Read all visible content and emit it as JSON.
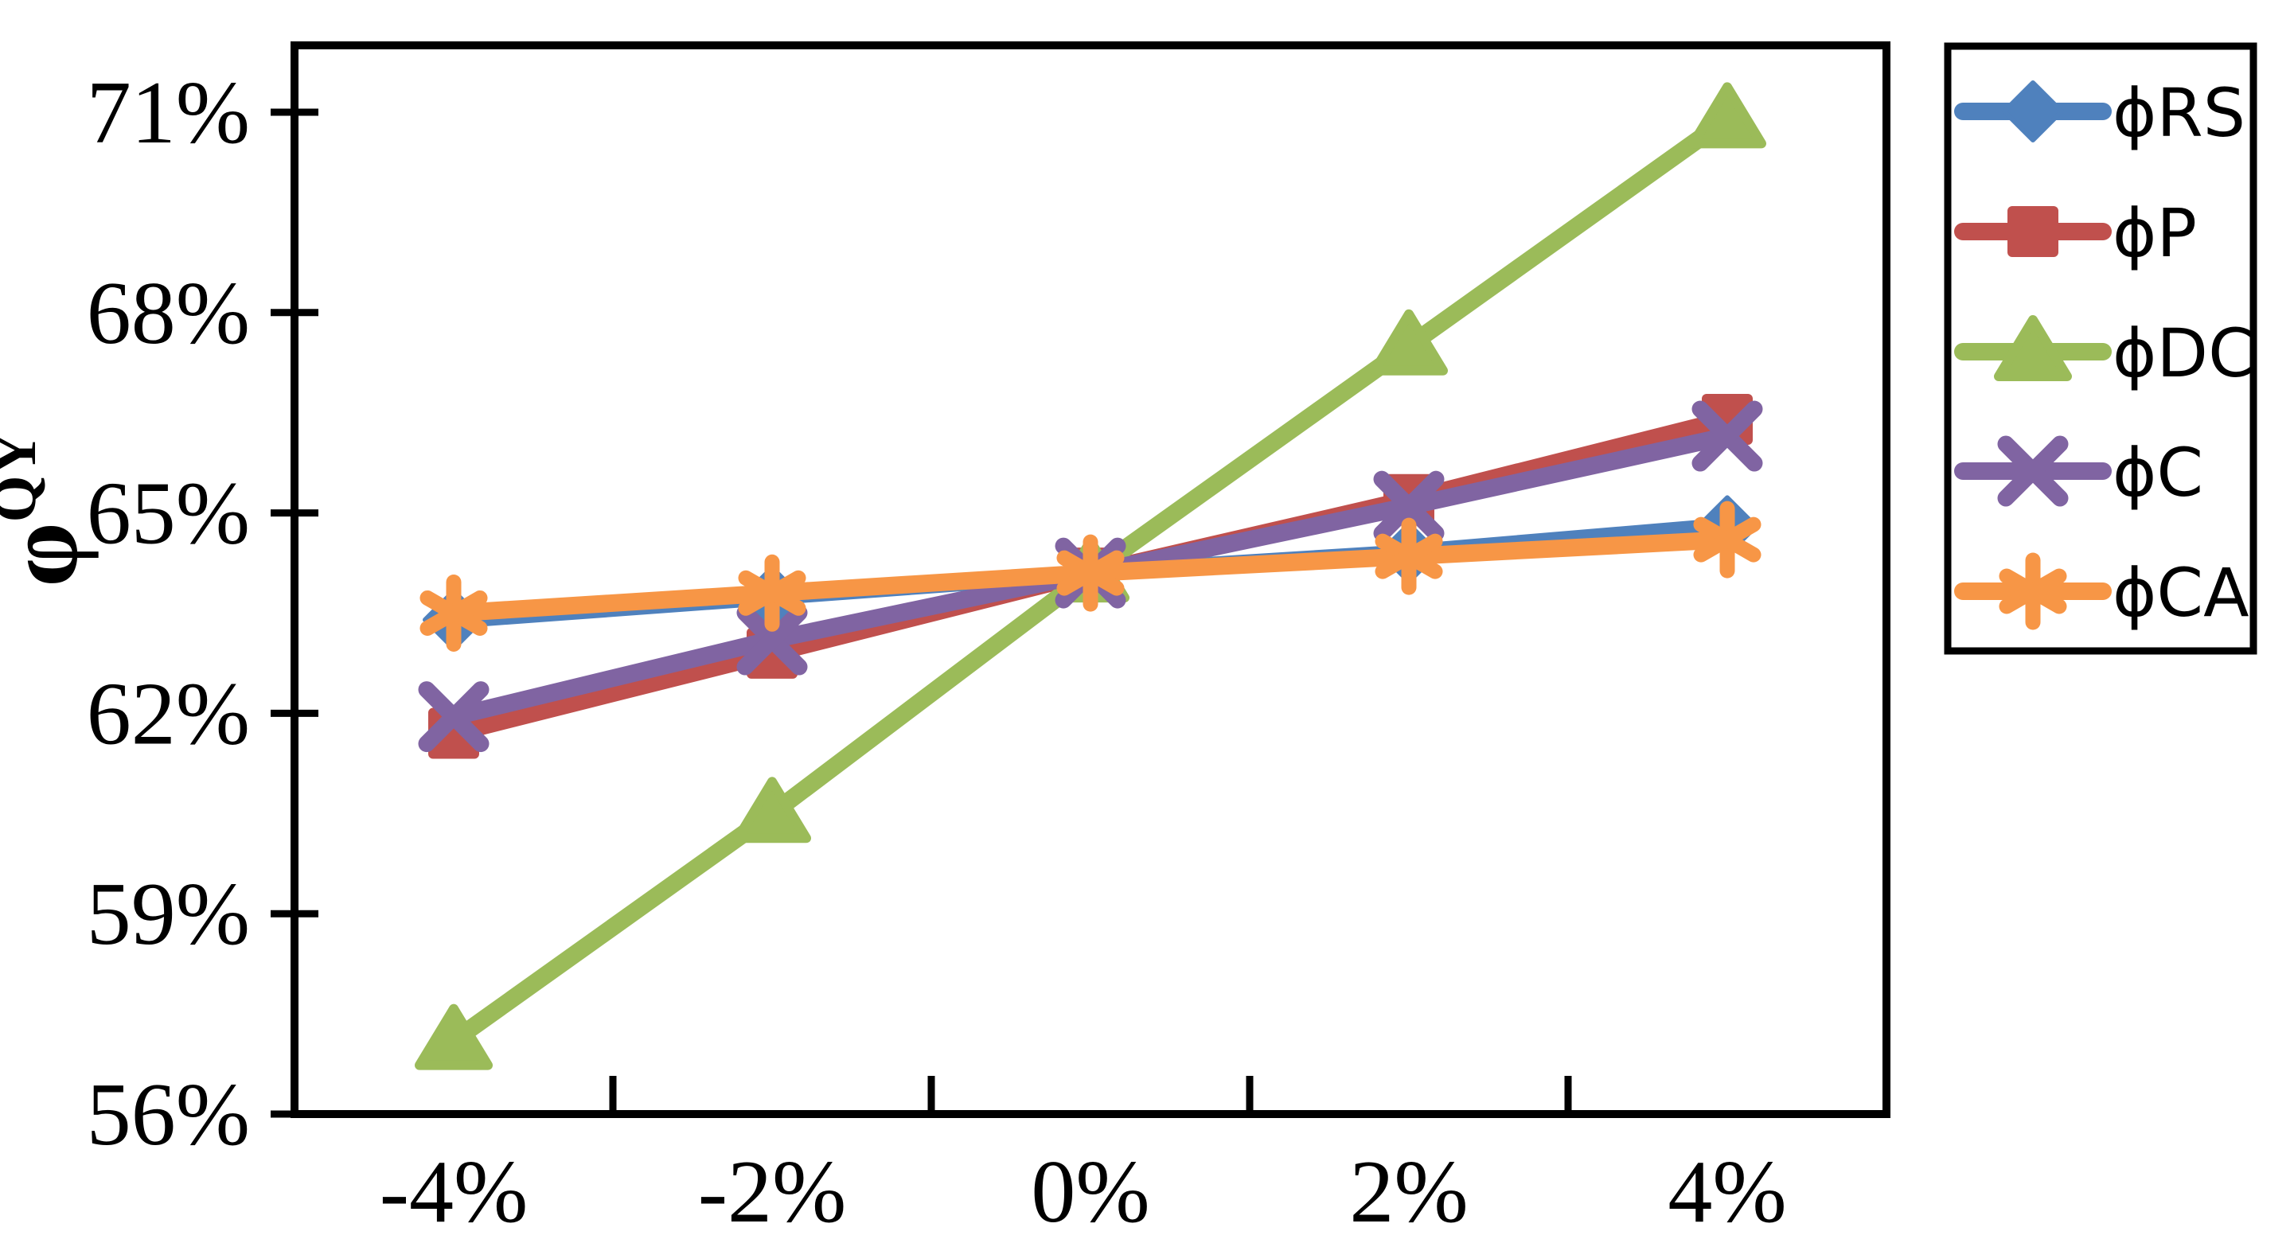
{
  "figure": {
    "background_color": "#ffffff",
    "frame_color": "#000000"
  },
  "y_axis": {
    "title_base": "φ",
    "title_superscript": "QY",
    "ticks": [
      {
        "label": "71%",
        "value": 71
      },
      {
        "label": "68%",
        "value": 68
      },
      {
        "label": "65%",
        "value": 65
      },
      {
        "label": "62%",
        "value": 62
      },
      {
        "label": "59%",
        "value": 59
      },
      {
        "label": "56%",
        "value": 56
      }
    ],
    "min": 56,
    "max": 72
  },
  "x_axis": {
    "tick_labels": [
      "-4%",
      "-2%",
      "0%",
      "2%",
      "4%"
    ]
  },
  "chart_data": {
    "type": "line",
    "categories": [
      "-4%",
      "-2%",
      "0%",
      "2%",
      "4%"
    ],
    "series": [
      {
        "id": "phi-rs",
        "name": "ϕRS",
        "color": "#4F81BD",
        "marker": "diamond",
        "values": [
          63.4,
          63.75,
          64.1,
          64.4,
          64.8
        ]
      },
      {
        "id": "phi-p",
        "name": "ϕP",
        "color": "#C0504D",
        "marker": "square",
        "values": [
          61.7,
          62.9,
          64.1,
          65.2,
          66.4
        ]
      },
      {
        "id": "phi-dc",
        "name": "ϕDC",
        "color": "#9BBB59",
        "marker": "triangle",
        "values": [
          57.1,
          60.5,
          64.1,
          67.5,
          70.9
        ]
      },
      {
        "id": "phi-c",
        "name": "ϕC",
        "color": "#8064A2",
        "marker": "x",
        "values": [
          61.95,
          63.1,
          64.1,
          65.1,
          66.15
        ]
      },
      {
        "id": "phi-ca",
        "name": "ϕCA",
        "color": "#F79646",
        "marker": "asterisk",
        "values": [
          63.5,
          63.8,
          64.1,
          64.35,
          64.6
        ]
      }
    ],
    "title": "",
    "xlabel": "",
    "ylabel": "φ^QY",
    "ylim": [
      56,
      72
    ],
    "ytick_step": 3,
    "grid": false,
    "legend_position": "right"
  }
}
